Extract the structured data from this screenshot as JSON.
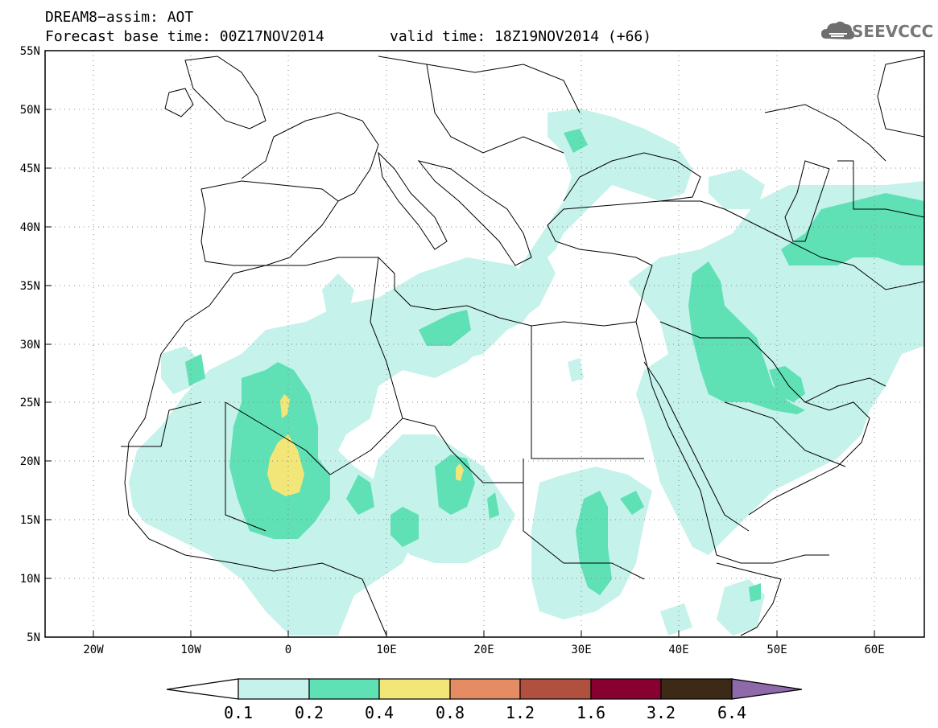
{
  "header": {
    "title_line1": "DREAM8−assim: AOT",
    "title_line2": "Forecast base time: 00Z17NOV2014",
    "valid_time": "valid time: 18Z19NOV2014 (+66)"
  },
  "logo": {
    "text": "SEEVCCC",
    "icon": "cloud-icon"
  },
  "map": {
    "lon_range": [
      -25,
      65
    ],
    "lat_range": [
      5,
      55
    ],
    "lat_ticks": [
      "55N",
      "50N",
      "45N",
      "40N",
      "35N",
      "30N",
      "25N",
      "20N",
      "15N",
      "10N",
      "5N"
    ],
    "lon_ticks": [
      "20W",
      "10W",
      "0",
      "10E",
      "20E",
      "30E",
      "40E",
      "50E",
      "60E"
    ],
    "gridlines": true
  },
  "colorbar": {
    "labels": [
      "0.1",
      "0.2",
      "0.4",
      "0.8",
      "1.2",
      "1.6",
      "3.2",
      "6.4"
    ],
    "colors": [
      "#ffffff",
      "#c5f2ea",
      "#5fe0b5",
      "#f2e679",
      "#e58c65",
      "#b0503f",
      "#870030",
      "#3d2a16",
      "#8e6aaa"
    ]
  },
  "colors": {
    "aot_0_1": "#c5f2ea",
    "aot_0_2": "#5fe0b5",
    "aot_0_4": "#f2e679"
  }
}
